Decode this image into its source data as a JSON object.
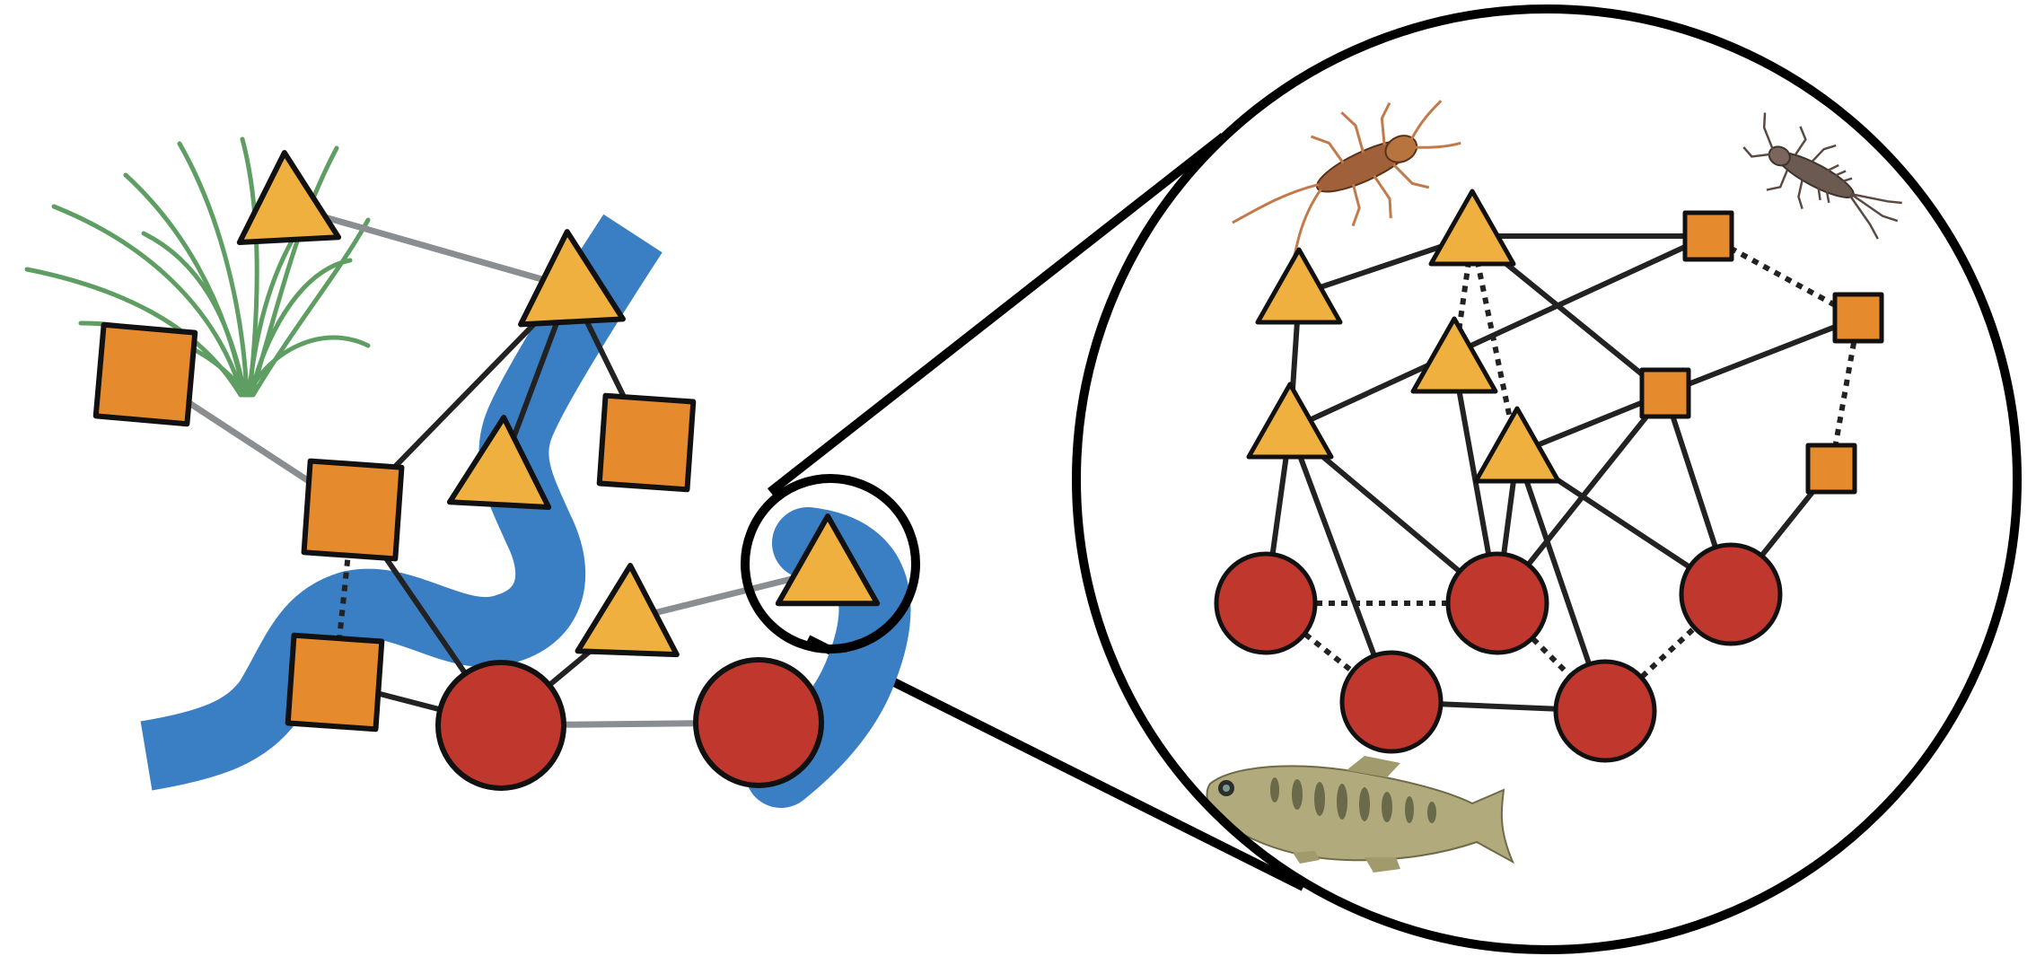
{
  "diagram": {
    "type": "network-diagram",
    "text_labels": [],
    "colors": {
      "river": "#3a7ec4",
      "circle_node": "#c0372d",
      "square_node": "#e68a2e",
      "triangle_node": "#f0b040",
      "outline": "#111111",
      "landscape_link": "#8a8e91",
      "link": "#222222",
      "grass": "#5e9e63",
      "fish_body": "#b0aa7c",
      "insect": "#9c5a35"
    },
    "node_shapes": [
      "circle",
      "square",
      "triangle"
    ],
    "landscape_panel": {
      "background": [
        "river",
        "grass-icon"
      ],
      "nodes": [
        {
          "id": "L1",
          "shape": "triangle"
        },
        {
          "id": "L2",
          "shape": "triangle"
        },
        {
          "id": "L3",
          "shape": "square"
        },
        {
          "id": "L4",
          "shape": "square"
        },
        {
          "id": "L5",
          "shape": "triangle"
        },
        {
          "id": "L6",
          "shape": "square"
        },
        {
          "id": "L7",
          "shape": "triangle"
        },
        {
          "id": "L8",
          "shape": "square"
        },
        {
          "id": "L9",
          "shape": "circle"
        },
        {
          "id": "L10",
          "shape": "circle"
        },
        {
          "id": "L11",
          "shape": "triangle"
        }
      ],
      "links": [
        {
          "from": "L1",
          "to": "L2",
          "style": "gray"
        },
        {
          "from": "L3",
          "to": "L4",
          "style": "gray"
        },
        {
          "from": "L4",
          "to": "L2",
          "style": "solid"
        },
        {
          "from": "L2",
          "to": "L5",
          "style": "solid"
        },
        {
          "from": "L2",
          "to": "L6",
          "style": "solid"
        },
        {
          "from": "L4",
          "to": "L8",
          "style": "dotted"
        },
        {
          "from": "L4",
          "to": "L9",
          "style": "solid"
        },
        {
          "from": "L8",
          "to": "L9",
          "style": "solid"
        },
        {
          "from": "L9",
          "to": "L7",
          "style": "solid"
        },
        {
          "from": "L9",
          "to": "L10",
          "style": "gray"
        },
        {
          "from": "L7",
          "to": "L11",
          "style": "gray"
        }
      ],
      "zoom_target": "L11"
    },
    "zoom_panel": {
      "icons": [
        "stonefly-icon",
        "mayfly-nymph-icon",
        "fish-icon"
      ],
      "nodes": [
        {
          "id": "T1",
          "shape": "triangle"
        },
        {
          "id": "T2",
          "shape": "triangle"
        },
        {
          "id": "T3",
          "shape": "triangle"
        },
        {
          "id": "T4",
          "shape": "triangle"
        },
        {
          "id": "T5",
          "shape": "triangle"
        },
        {
          "id": "S1",
          "shape": "square"
        },
        {
          "id": "S2",
          "shape": "square"
        },
        {
          "id": "S3",
          "shape": "square"
        },
        {
          "id": "S4",
          "shape": "square"
        },
        {
          "id": "C1",
          "shape": "circle"
        },
        {
          "id": "C2",
          "shape": "circle"
        },
        {
          "id": "C3",
          "shape": "circle"
        },
        {
          "id": "C4",
          "shape": "circle"
        },
        {
          "id": "C5",
          "shape": "circle"
        }
      ],
      "links": [
        {
          "from": "T1",
          "to": "T2",
          "style": "solid"
        },
        {
          "from": "T2",
          "to": "S1",
          "style": "solid"
        },
        {
          "from": "T2",
          "to": "S3",
          "style": "solid"
        },
        {
          "from": "T2",
          "to": "T3",
          "style": "dotted"
        },
        {
          "from": "T2",
          "to": "T5",
          "style": "dotted"
        },
        {
          "from": "T1",
          "to": "T4",
          "style": "solid"
        },
        {
          "from": "T4",
          "to": "S1",
          "style": "solid"
        },
        {
          "from": "S1",
          "to": "S2",
          "style": "dotted"
        },
        {
          "from": "S2",
          "to": "S3",
          "style": "solid"
        },
        {
          "from": "S3",
          "to": "T5",
          "style": "solid"
        },
        {
          "from": "S3",
          "to": "C2",
          "style": "solid"
        },
        {
          "from": "S3",
          "to": "C3",
          "style": "solid"
        },
        {
          "from": "S2",
          "to": "S4",
          "style": "dotted"
        },
        {
          "from": "S4",
          "to": "C3",
          "style": "solid"
        },
        {
          "from": "T4",
          "to": "C1",
          "style": "solid"
        },
        {
          "from": "T4",
          "to": "C4",
          "style": "solid"
        },
        {
          "from": "T4",
          "to": "C2",
          "style": "solid"
        },
        {
          "from": "T3",
          "to": "C2",
          "style": "solid"
        },
        {
          "from": "T5",
          "to": "C2",
          "style": "solid"
        },
        {
          "from": "T5",
          "to": "C5",
          "style": "solid"
        },
        {
          "from": "T5",
          "to": "C3",
          "style": "solid"
        },
        {
          "from": "C1",
          "to": "C2",
          "style": "dotted"
        },
        {
          "from": "C1",
          "to": "C4",
          "style": "dotted"
        },
        {
          "from": "C2",
          "to": "C5",
          "style": "dotted"
        },
        {
          "from": "C4",
          "to": "C5",
          "style": "solid"
        },
        {
          "from": "C5",
          "to": "C3",
          "style": "dotted"
        }
      ]
    }
  }
}
